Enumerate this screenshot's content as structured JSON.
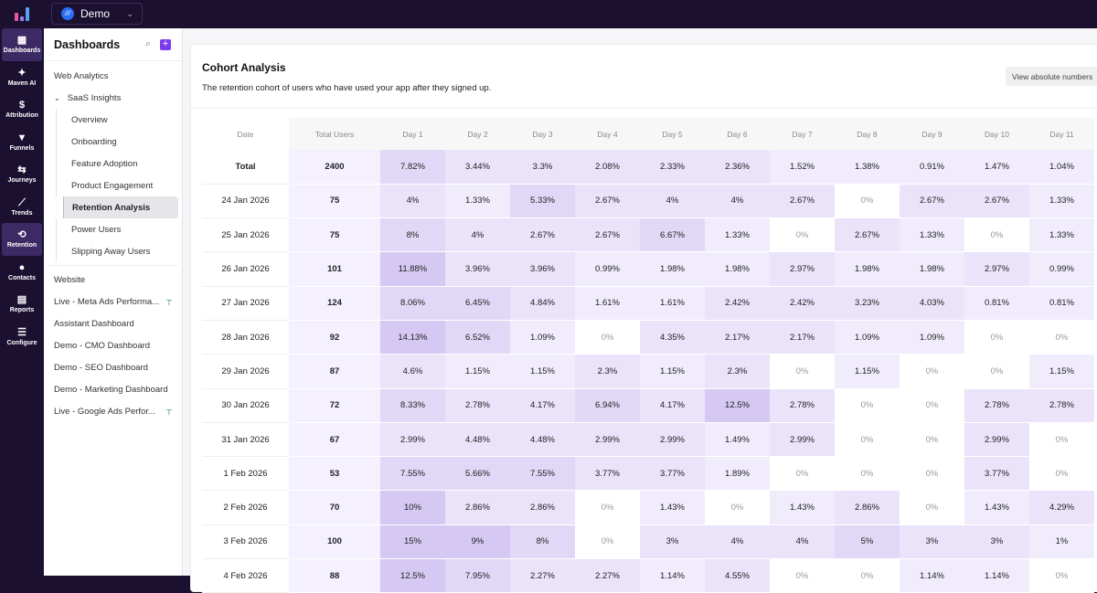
{
  "app": {
    "workspace": "Demo",
    "workspace_icon": "workspace-logo"
  },
  "rail": [
    {
      "label": "Dashboards",
      "icon": "grid-icon",
      "glyph": "▦",
      "active": true
    },
    {
      "label": "Maven AI",
      "icon": "sparkle-icon",
      "glyph": "✦",
      "active": false
    },
    {
      "label": "Attribution",
      "icon": "dollar-icon",
      "glyph": "$",
      "active": false
    },
    {
      "label": "Funnels",
      "icon": "funnel-icon",
      "glyph": "▼",
      "active": false
    },
    {
      "label": "Journeys",
      "icon": "route-icon",
      "glyph": "⇆",
      "active": false
    },
    {
      "label": "Trends",
      "icon": "trend-icon",
      "glyph": "⟋",
      "active": false
    },
    {
      "label": "Retention",
      "icon": "retention-icon",
      "glyph": "⟲",
      "active": true
    },
    {
      "label": "Contacts",
      "icon": "user-icon",
      "glyph": "●",
      "active": false
    },
    {
      "label": "Reports",
      "icon": "report-icon",
      "glyph": "▤",
      "active": false
    },
    {
      "label": "Configure",
      "icon": "sliders-icon",
      "glyph": "☰",
      "active": false
    }
  ],
  "sidebar": {
    "title": "Dashboards",
    "groups": {
      "web_analytics": "Web Analytics",
      "saas_insights": "SaaS Insights",
      "saas_items": [
        "Overview",
        "Onboarding",
        "Feature Adoption",
        "Product Engagement",
        "Retention Analysis",
        "Power Users",
        "Slipping Away Users"
      ],
      "active": "Retention Analysis"
    },
    "others": [
      {
        "label": "Website",
        "pinned": false
      },
      {
        "label": "Live - Meta Ads Performa...",
        "pinned": true
      },
      {
        "label": "Assistant Dashboard",
        "pinned": false
      },
      {
        "label": "Demo - CMO Dashboard",
        "pinned": false
      },
      {
        "label": "Demo - SEO Dashboard",
        "pinned": false
      },
      {
        "label": "Demo - Marketing Dashboard",
        "pinned": false
      },
      {
        "label": "Live - Google Ads Perfor...",
        "pinned": true
      }
    ]
  },
  "card": {
    "title": "Cohort Analysis",
    "description": "The retention cohort of users who have used your app after they signed up.",
    "button": "View absolute numbers"
  },
  "colors": {
    "accent": "#7c3aed",
    "rail_bg": "#1b1030"
  },
  "table": {
    "headers": [
      "Date",
      "Total Users",
      "Day 1",
      "Day 2",
      "Day 3",
      "Day 4",
      "Day 5",
      "Day 6",
      "Day 7",
      "Day 8",
      "Day 9",
      "Day 10",
      "Day 11"
    ],
    "rows": [
      [
        "Total",
        "2400",
        "7.82%",
        "3.44%",
        "3.3%",
        "2.08%",
        "2.33%",
        "2.36%",
        "1.52%",
        "1.38%",
        "0.91%",
        "1.47%",
        "1.04%"
      ],
      [
        "24 Jan 2026",
        "75",
        "4%",
        "1.33%",
        "5.33%",
        "2.67%",
        "4%",
        "4%",
        "2.67%",
        "0%",
        "2.67%",
        "2.67%",
        "1.33%"
      ],
      [
        "25 Jan 2026",
        "75",
        "8%",
        "4%",
        "2.67%",
        "2.67%",
        "6.67%",
        "1.33%",
        "0%",
        "2.67%",
        "1.33%",
        "0%",
        "1.33%"
      ],
      [
        "26 Jan 2026",
        "101",
        "11.88%",
        "3.96%",
        "3.96%",
        "0.99%",
        "1.98%",
        "1.98%",
        "2.97%",
        "1.98%",
        "1.98%",
        "2.97%",
        "0.99%"
      ],
      [
        "27 Jan 2026",
        "124",
        "8.06%",
        "6.45%",
        "4.84%",
        "1.61%",
        "1.61%",
        "2.42%",
        "2.42%",
        "3.23%",
        "4.03%",
        "0.81%",
        "0.81%"
      ],
      [
        "28 Jan 2026",
        "92",
        "14.13%",
        "6.52%",
        "1.09%",
        "0%",
        "4.35%",
        "2.17%",
        "2.17%",
        "1.09%",
        "1.09%",
        "0%",
        "0%"
      ],
      [
        "29 Jan 2026",
        "87",
        "4.6%",
        "1.15%",
        "1.15%",
        "2.3%",
        "1.15%",
        "2.3%",
        "0%",
        "1.15%",
        "0%",
        "0%",
        "1.15%"
      ],
      [
        "30 Jan 2026",
        "72",
        "8.33%",
        "2.78%",
        "4.17%",
        "6.94%",
        "4.17%",
        "12.5%",
        "2.78%",
        "0%",
        "0%",
        "2.78%",
        "2.78%"
      ],
      [
        "31 Jan 2026",
        "67",
        "2.99%",
        "4.48%",
        "4.48%",
        "2.99%",
        "2.99%",
        "1.49%",
        "2.99%",
        "0%",
        "0%",
        "2.99%",
        "0%"
      ],
      [
        "1 Feb 2026",
        "53",
        "7.55%",
        "5.66%",
        "7.55%",
        "3.77%",
        "3.77%",
        "1.89%",
        "0%",
        "0%",
        "0%",
        "3.77%",
        "0%"
      ],
      [
        "2 Feb 2026",
        "70",
        "10%",
        "2.86%",
        "2.86%",
        "0%",
        "1.43%",
        "0%",
        "1.43%",
        "2.86%",
        "0%",
        "1.43%",
        "4.29%"
      ],
      [
        "3 Feb 2026",
        "100",
        "15%",
        "9%",
        "8%",
        "0%",
        "3%",
        "4%",
        "4%",
        "5%",
        "3%",
        "3%",
        "1%"
      ],
      [
        "4 Feb 2026",
        "88",
        "12.5%",
        "7.95%",
        "2.27%",
        "2.27%",
        "1.14%",
        "4.55%",
        "0%",
        "0%",
        "1.14%",
        "1.14%",
        "0%"
      ]
    ]
  }
}
